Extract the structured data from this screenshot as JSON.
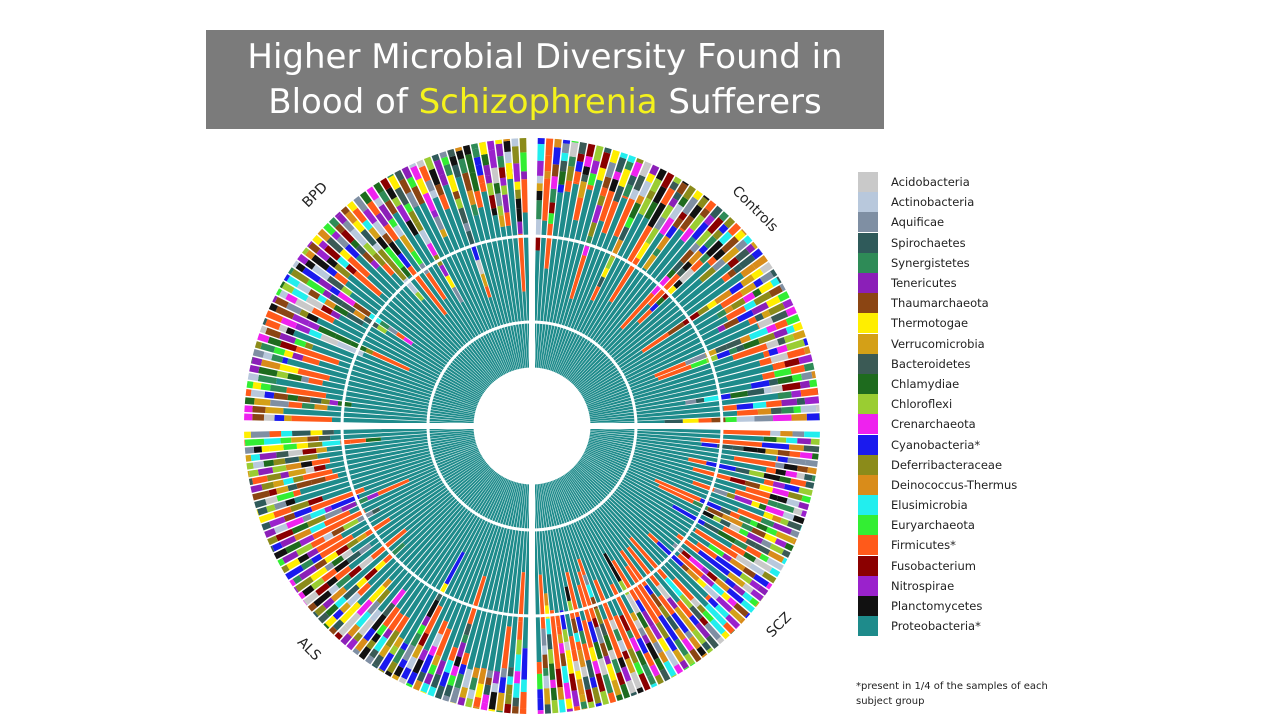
{
  "title": {
    "line1": "Higher Microbial Diversity Found in",
    "line2_pre": "Blood of ",
    "line2_highlight": "Schizophrenia",
    "line2_post": " Sufferers"
  },
  "footnote": "*present in 1/4 of the samples of each subject group",
  "chart_data": {
    "type": "circular-stacked-bar",
    "groups": [
      "Controls",
      "SCZ",
      "ALS",
      "BPD"
    ],
    "grid": true,
    "legend_position": "right",
    "legend": [
      {
        "name": "Acidobacteria",
        "color": "#c9c9c9"
      },
      {
        "name": "Actinobacteria",
        "color": "#b8c8dc"
      },
      {
        "name": "Aquificae",
        "color": "#7f8fa3"
      },
      {
        "name": "Spirochaetes",
        "color": "#2f5a5a"
      },
      {
        "name": "Synergistetes",
        "color": "#2e8b57"
      },
      {
        "name": "Tenericutes",
        "color": "#8b1fb8"
      },
      {
        "name": "Thaumarchaeota",
        "color": "#8b4513"
      },
      {
        "name": "Thermotogae",
        "color": "#ffee00"
      },
      {
        "name": "Verrucomicrobia",
        "color": "#d4a017"
      },
      {
        "name": "Bacteroidetes",
        "color": "#3b5a55"
      },
      {
        "name": "Chlamydiae",
        "color": "#1e6b1e"
      },
      {
        "name": "Chloroflexi",
        "color": "#9acd32"
      },
      {
        "name": "Crenarchaeota",
        "color": "#ee22ee"
      },
      {
        "name": "Cyanobacteria*",
        "color": "#1a1aee"
      },
      {
        "name": "Deferribacteraceae",
        "color": "#8b8b1a"
      },
      {
        "name": "Deinococcus-Thermus",
        "color": "#d98c1a"
      },
      {
        "name": "Elusimicrobia",
        "color": "#22eeee"
      },
      {
        "name": "Euryarchaeota",
        "color": "#33ee33"
      },
      {
        "name": "Firmicutes*",
        "color": "#ff5a1a"
      },
      {
        "name": "Fusobacterium",
        "color": "#8b0000"
      },
      {
        "name": "Nitrospirae",
        "color": "#9a22cc"
      },
      {
        "name": "Planctomycetes",
        "color": "#111111"
      },
      {
        "name": "Proteobacteria*",
        "color": "#1e8b8b"
      }
    ]
  }
}
